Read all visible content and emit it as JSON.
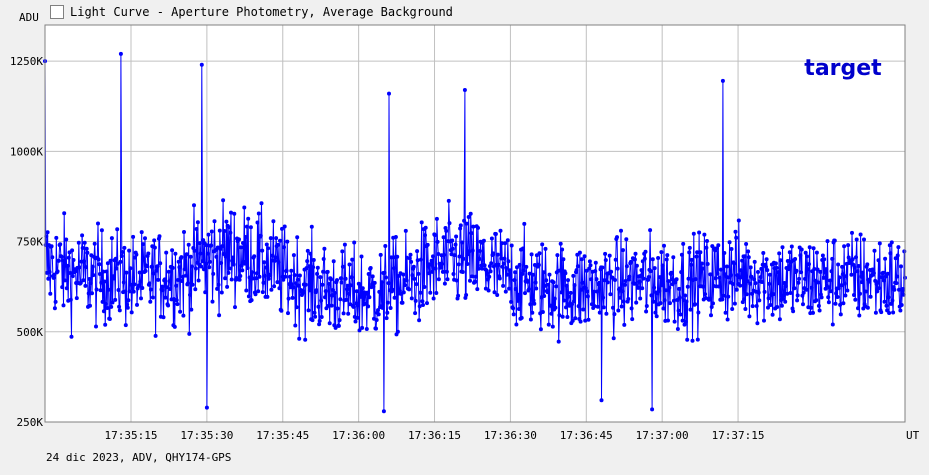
{
  "window": {
    "title": "Light Curve - Aperture Photometry, Average Background"
  },
  "icons": {
    "title_icon": "chart-icon"
  },
  "colors": {
    "series": "#0000ff",
    "grid": "#c0c0c0",
    "plot_background": "#ffffff",
    "panel_background": "#f0f0f0",
    "target_label": "#0000cc"
  },
  "footer": {
    "text": "24 dic 2023, ADV, QHY174-GPS"
  },
  "chart_data": {
    "type": "line",
    "title": "",
    "xlabel": "UT",
    "ylabel": "ADU",
    "grid": true,
    "annotation": "target",
    "annotation_position": "top-right",
    "ylim": [
      250000,
      1350000
    ],
    "xlim": [
      "17:34:58",
      "17:37:48"
    ],
    "y_ticks": [
      {
        "value": 250000,
        "label": "250K"
      },
      {
        "value": 500000,
        "label": "500K"
      },
      {
        "value": 750000,
        "label": "750K"
      },
      {
        "value": 1000000,
        "label": "1000K"
      },
      {
        "value": 1250000,
        "label": "1250K"
      }
    ],
    "x_ticks": [
      "17:35:15",
      "17:35:30",
      "17:35:45",
      "17:36:00",
      "17:36:15",
      "17:36:30",
      "17:36:45",
      "17:37:00",
      "17:37:15"
    ],
    "series": [
      {
        "name": "target",
        "x": [
          "17:34:58",
          "17:35:04",
          "17:35:10",
          "17:35:15",
          "17:35:20",
          "17:35:25",
          "17:35:30",
          "17:35:35",
          "17:35:40",
          "17:35:45",
          "17:35:50",
          "17:35:55",
          "17:36:00",
          "17:36:05",
          "17:36:10",
          "17:36:15",
          "17:36:20",
          "17:36:25",
          "17:36:30",
          "17:36:35",
          "17:36:40",
          "17:36:45",
          "17:36:50",
          "17:36:55",
          "17:37:00",
          "17:37:05",
          "17:37:10",
          "17:37:15",
          "17:37:20",
          "17:37:25",
          "17:37:30",
          "17:37:35",
          "17:37:40",
          "17:37:45"
        ],
        "y": [
          690000,
          660000,
          650000,
          640000,
          650000,
          660000,
          700000,
          720000,
          700000,
          660000,
          630000,
          610000,
          600000,
          610000,
          640000,
          680000,
          700000,
          680000,
          650000,
          630000,
          620000,
          620000,
          630000,
          640000,
          640000,
          630000,
          650000,
          660000,
          650000,
          640000,
          640000,
          650000,
          650000,
          640000
        ],
        "spread": [
          250000,
          230000,
          220000,
          220000,
          220000,
          230000,
          250000,
          240000,
          230000,
          220000,
          220000,
          220000,
          220000,
          220000,
          230000,
          240000,
          240000,
          230000,
          220000,
          220000,
          220000,
          220000,
          220000,
          220000,
          220000,
          220000,
          220000,
          230000,
          220000,
          220000,
          220000,
          220000,
          220000,
          220000
        ],
        "peaks": [
          {
            "x": "17:34:58",
            "y": 1250000
          },
          {
            "x": "17:35:13",
            "y": 1270000
          },
          {
            "x": "17:35:29",
            "y": 1240000
          },
          {
            "x": "17:36:06",
            "y": 1160000
          },
          {
            "x": "17:36:21",
            "y": 1170000
          },
          {
            "x": "17:37:12",
            "y": 1195000
          }
        ],
        "troughs": [
          {
            "x": "17:35:30",
            "y": 290000
          },
          {
            "x": "17:36:05",
            "y": 280000
          },
          {
            "x": "17:36:48",
            "y": 310000
          },
          {
            "x": "17:36:58",
            "y": 285000
          }
        ]
      }
    ]
  }
}
